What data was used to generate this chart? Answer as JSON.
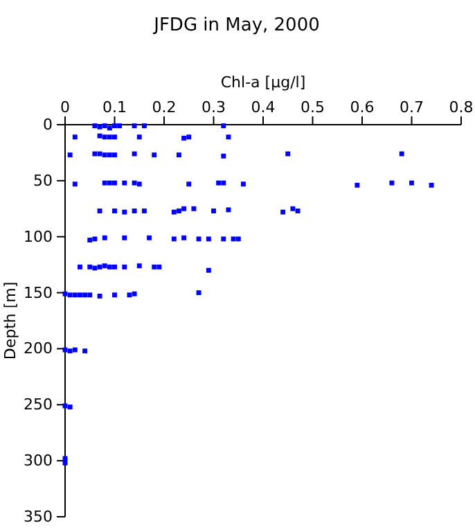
{
  "chart_data": {
    "type": "scatter",
    "title": "JFDG in May, 2000",
    "xlabel": "Chl-a [µg/l]",
    "ylabel": "Depth [m]",
    "marker": "square",
    "xlim": [
      0,
      0.8
    ],
    "xticks": [
      0,
      0.1,
      0.2,
      0.3,
      0.4,
      0.5,
      0.6,
      0.7,
      0.8
    ],
    "ylim": [
      350,
      0
    ],
    "yticks": [
      0,
      50,
      100,
      150,
      200,
      250,
      300,
      350
    ],
    "series": [
      {
        "color": "#0000ff",
        "x": [
          0.06,
          0.07,
          0.08,
          0.09,
          0.1,
          0.11,
          0.14,
          0.16,
          0.32,
          0.02,
          0.07,
          0.08,
          0.09,
          0.1,
          0.15,
          0.24,
          0.25,
          0.33,
          0.01,
          0.06,
          0.07,
          0.08,
          0.09,
          0.1,
          0.14,
          0.18,
          0.23,
          0.32,
          0.45,
          0.68,
          0.02,
          0.08,
          0.09,
          0.1,
          0.12,
          0.14,
          0.15,
          0.25,
          0.31,
          0.32,
          0.36,
          0.59,
          0.66,
          0.7,
          0.74,
          0.07,
          0.1,
          0.12,
          0.14,
          0.16,
          0.22,
          0.23,
          0.24,
          0.26,
          0.3,
          0.33,
          0.44,
          0.46,
          0.47,
          0.05,
          0.06,
          0.08,
          0.12,
          0.17,
          0.22,
          0.24,
          0.27,
          0.29,
          0.32,
          0.34,
          0.35,
          0.03,
          0.05,
          0.06,
          0.07,
          0.08,
          0.09,
          0.1,
          0.12,
          0.15,
          0.18,
          0.19,
          0.29,
          0,
          0.01,
          0.02,
          0.03,
          0.04,
          0.05,
          0.07,
          0.1,
          0.13,
          0.14,
          0.27,
          0,
          0.01,
          0.02,
          0.04,
          0,
          0.01,
          0,
          0
        ],
        "values": [
          1,
          2,
          1,
          3,
          1,
          1,
          1,
          1,
          1,
          11,
          10,
          11,
          11,
          11,
          11,
          12,
          11,
          11,
          27,
          26,
          26,
          27,
          27,
          27,
          26,
          27,
          27,
          28,
          26,
          26,
          53,
          52,
          52,
          52,
          52,
          52,
          53,
          53,
          52,
          52,
          53,
          54,
          52,
          52,
          54,
          77,
          77,
          78,
          77,
          77,
          78,
          77,
          75,
          75,
          77,
          76,
          78,
          75,
          77,
          103,
          102,
          101,
          101,
          101,
          102,
          101,
          102,
          102,
          102,
          102,
          102,
          127,
          127,
          128,
          127,
          126,
          127,
          127,
          127,
          126,
          127,
          127,
          130,
          151,
          152,
          152,
          152,
          152,
          152,
          153,
          152,
          152,
          151,
          150,
          201,
          202,
          201,
          202,
          251,
          252,
          298,
          302
        ]
      }
    ]
  }
}
